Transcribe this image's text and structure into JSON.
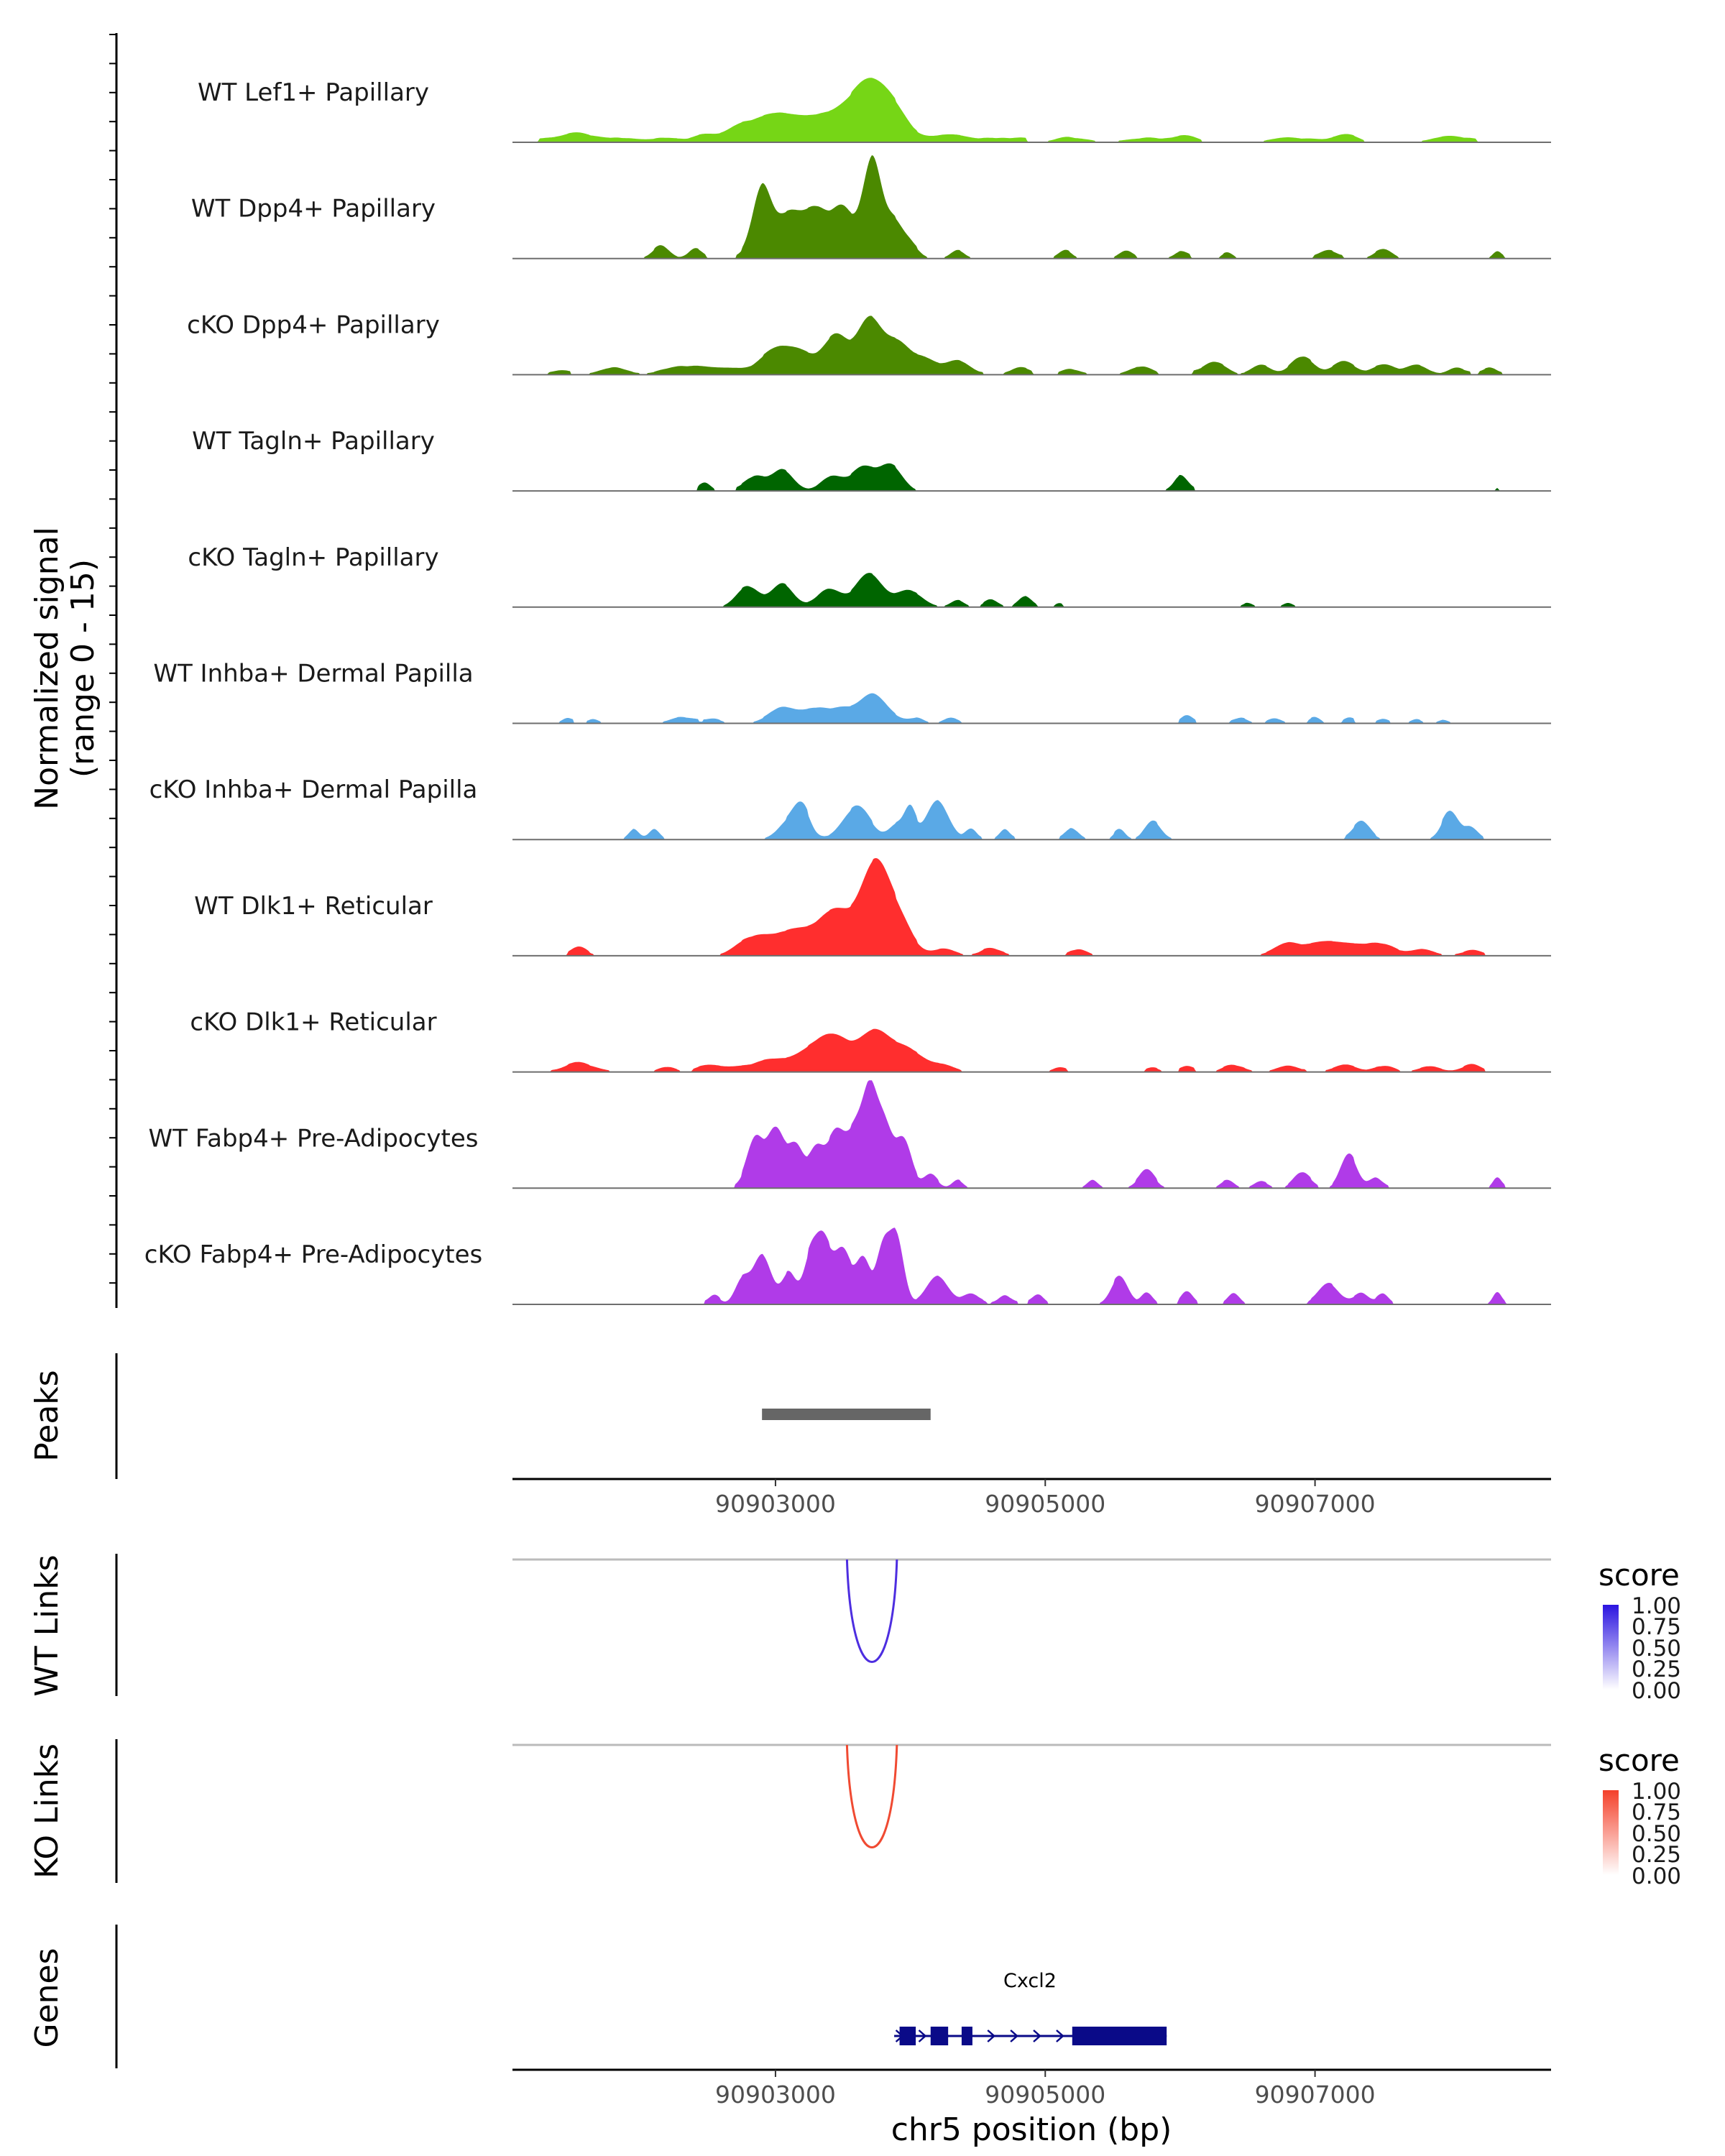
{
  "chart_data": {
    "type": "area",
    "title": "",
    "region": {
      "chrom": "chr5",
      "start": 90901050,
      "end": 90908750
    },
    "xlabel": "chr5 position (bp)",
    "x_ticks": [
      90903000,
      90905000,
      90907000
    ],
    "x_tick_labels": [
      "90903000",
      "90905000",
      "90907000"
    ],
    "ylabel_line1": "Normalized signal",
    "ylabel_line2": "(range 0 - 15)",
    "ylim": [
      0,
      15
    ],
    "tracks": [
      {
        "name": "WT Lef1+ Papillary",
        "color": "#76d616",
        "peaks": [
          [
            90901400,
            0.6,
            110
          ],
          [
            90901600,
            0.9,
            130
          ],
          [
            90901900,
            0.5,
            110
          ],
          [
            90902200,
            0.6,
            110
          ],
          [
            90902500,
            0.8,
            100
          ],
          [
            90902700,
            0.7,
            90
          ],
          [
            90902900,
            2.8,
            160
          ],
          [
            90903100,
            2.2,
            140
          ],
          [
            90903300,
            1.6,
            120
          ],
          [
            90903500,
            2.6,
            160
          ],
          [
            90903700,
            6.0,
            150
          ],
          [
            90903850,
            3.0,
            130
          ],
          [
            90904300,
            1.1,
            140
          ],
          [
            90904700,
            0.6,
            120
          ],
          [
            90905200,
            0.6,
            120
          ],
          [
            90905700,
            0.5,
            120
          ],
          [
            90906000,
            0.7,
            110
          ],
          [
            90906800,
            0.7,
            120
          ],
          [
            90907200,
            0.9,
            100
          ],
          [
            90908000,
            0.9,
            120
          ]
        ]
      },
      {
        "name": "WT Dpp4+ Papillary",
        "color": "#4b8900",
        "peaks": [
          [
            90902150,
            1.8,
            60
          ],
          [
            90902400,
            1.2,
            50
          ],
          [
            90902900,
            10.0,
            70
          ],
          [
            90903100,
            6.0,
            90
          ],
          [
            90903300,
            6.5,
            90
          ],
          [
            90903500,
            6.8,
            80
          ],
          [
            90903720,
            14.0,
            70
          ],
          [
            90903880,
            4.5,
            60
          ],
          [
            90904000,
            2.0,
            60
          ],
          [
            90904350,
            1.2,
            50
          ],
          [
            90905150,
            1.0,
            50
          ],
          [
            90905600,
            1.1,
            50
          ],
          [
            90906000,
            0.8,
            50
          ],
          [
            90906350,
            0.7,
            40
          ],
          [
            90907100,
            1.2,
            60
          ],
          [
            90907500,
            1.3,
            60
          ],
          [
            90908350,
            1.0,
            30
          ]
        ]
      },
      {
        "name": "cKO Dpp4+ Papillary",
        "color": "#4b8900",
        "peaks": [
          [
            90901400,
            0.6,
            60
          ],
          [
            90901800,
            1.0,
            100
          ],
          [
            90902300,
            1.2,
            130
          ],
          [
            90902600,
            0.9,
            100
          ],
          [
            90903000,
            3.5,
            120
          ],
          [
            90903200,
            2.5,
            100
          ],
          [
            90903450,
            5.5,
            90
          ],
          [
            90903700,
            7.5,
            90
          ],
          [
            90903900,
            4.0,
            90
          ],
          [
            90904100,
            2.2,
            90
          ],
          [
            90904350,
            2.0,
            90
          ],
          [
            90904800,
            0.8,
            70
          ],
          [
            90905200,
            0.7,
            70
          ],
          [
            90905700,
            1.1,
            80
          ],
          [
            90906250,
            1.8,
            80
          ],
          [
            90906600,
            1.4,
            70
          ],
          [
            90906900,
            2.5,
            80
          ],
          [
            90907200,
            1.7,
            80
          ],
          [
            90907500,
            1.4,
            80
          ],
          [
            90907750,
            1.4,
            80
          ],
          [
            90908050,
            1.0,
            60
          ],
          [
            90908300,
            1.0,
            50
          ]
        ]
      },
      {
        "name": "WT Tagln+ Papillary",
        "color": "#006500",
        "peaks": [
          [
            90902480,
            0.9,
            40
          ],
          [
            90902850,
            2.0,
            70
          ],
          [
            90903050,
            3.0,
            80
          ],
          [
            90903420,
            2.0,
            80
          ],
          [
            90903650,
            3.0,
            90
          ],
          [
            90903850,
            3.5,
            80
          ],
          [
            90906000,
            2.0,
            50
          ],
          [
            90908350,
            0.4,
            10
          ]
        ]
      },
      {
        "name": "cKO Tagln+ Papillary",
        "color": "#006500",
        "peaks": [
          [
            90902800,
            2.8,
            80
          ],
          [
            90903050,
            3.3,
            80
          ],
          [
            90903400,
            2.5,
            90
          ],
          [
            90903700,
            4.5,
            100
          ],
          [
            90904000,
            2.2,
            90
          ],
          [
            90904350,
            1.0,
            50
          ],
          [
            90904600,
            1.0,
            50
          ],
          [
            90904850,
            1.2,
            50
          ],
          [
            90905100,
            0.4,
            30
          ],
          [
            90906500,
            0.6,
            40
          ],
          [
            90906800,
            0.6,
            40
          ]
        ]
      },
      {
        "name": "WT Inhba+ Dermal Papilla",
        "color": "#5aa9e6",
        "peaks": [
          [
            90901450,
            0.6,
            40
          ],
          [
            90901650,
            0.6,
            40
          ],
          [
            90902300,
            0.9,
            80
          ],
          [
            90902550,
            0.6,
            50
          ],
          [
            90903050,
            2.2,
            100
          ],
          [
            90903300,
            2.0,
            100
          ],
          [
            90903500,
            1.8,
            80
          ],
          [
            90903730,
            4.0,
            100
          ],
          [
            90904050,
            0.8,
            50
          ],
          [
            90904300,
            0.8,
            50
          ],
          [
            90906050,
            0.8,
            40
          ],
          [
            90906450,
            0.8,
            50
          ],
          [
            90906700,
            0.7,
            50
          ],
          [
            90907000,
            0.7,
            40
          ],
          [
            90907250,
            0.5,
            40
          ],
          [
            90907500,
            0.6,
            40
          ],
          [
            90907750,
            0.6,
            40
          ],
          [
            90907950,
            0.5,
            40
          ]
        ]
      },
      {
        "name": "cKO Inhba+ Dermal Papilla",
        "color": "#5aa9e6",
        "peaks": [
          [
            90901950,
            1.5,
            40
          ],
          [
            90902100,
            1.5,
            40
          ],
          [
            90903100,
            2.5,
            80
          ],
          [
            90903200,
            4.0,
            60
          ],
          [
            90903600,
            4.5,
            100
          ],
          [
            90903900,
            2.0,
            60
          ],
          [
            90904000,
            4.0,
            40
          ],
          [
            90904200,
            5.5,
            80
          ],
          [
            90904450,
            1.5,
            40
          ],
          [
            90904700,
            1.5,
            40
          ],
          [
            90905200,
            1.5,
            50
          ],
          [
            90905550,
            1.5,
            40
          ],
          [
            90905800,
            2.5,
            60
          ],
          [
            90907350,
            2.5,
            60
          ],
          [
            90908000,
            4.0,
            60
          ],
          [
            90908150,
            1.5,
            50
          ]
        ]
      },
      {
        "name": "WT Dlk1+ Reticular",
        "color": "#ff2e2e",
        "peaks": [
          [
            90901550,
            1.0,
            60
          ],
          [
            90902850,
            2.5,
            120
          ],
          [
            90903150,
            3.5,
            140
          ],
          [
            90903450,
            6.0,
            120
          ],
          [
            90903750,
            13.0,
            110
          ],
          [
            90903950,
            3.0,
            90
          ],
          [
            90904250,
            1.0,
            80
          ],
          [
            90904600,
            1.0,
            80
          ],
          [
            90905250,
            0.9,
            60
          ],
          [
            90906800,
            1.8,
            100
          ],
          [
            90907100,
            2.0,
            120
          ],
          [
            90907450,
            1.8,
            130
          ],
          [
            90907800,
            0.9,
            80
          ],
          [
            90908150,
            0.6,
            80
          ]
        ]
      },
      {
        "name": "cKO Dlk1+ Reticular",
        "color": "#ff2e2e",
        "peaks": [
          [
            90901550,
            1.1,
            120
          ],
          [
            90902200,
            0.7,
            60
          ],
          [
            90902550,
            0.9,
            100
          ],
          [
            90902950,
            1.7,
            130
          ],
          [
            90903250,
            2.5,
            120
          ],
          [
            90903450,
            4.5,
            120
          ],
          [
            90903750,
            5.5,
            110
          ],
          [
            90904000,
            2.8,
            110
          ],
          [
            90904250,
            0.9,
            80
          ],
          [
            90905100,
            0.5,
            50
          ],
          [
            90905800,
            0.5,
            50
          ],
          [
            90906050,
            0.5,
            50
          ],
          [
            90906400,
            0.9,
            80
          ],
          [
            90906800,
            0.9,
            80
          ],
          [
            90907200,
            0.8,
            80
          ],
          [
            90907500,
            0.8,
            80
          ],
          [
            90907850,
            0.8,
            80
          ],
          [
            90908150,
            0.9,
            70
          ]
        ]
      },
      {
        "name": "WT Fabp4+ Pre-Adipocytes",
        "color": "#b03be8",
        "peaks": [
          [
            90902850,
            7.0,
            60
          ],
          [
            90903000,
            8.0,
            60
          ],
          [
            90903150,
            6.0,
            60
          ],
          [
            90903300,
            5.0,
            50
          ],
          [
            90903450,
            8.0,
            70
          ],
          [
            90903600,
            7.5,
            60
          ],
          [
            90903700,
            11.0,
            50
          ],
          [
            90903800,
            9.0,
            60
          ],
          [
            90903950,
            6.5,
            60
          ],
          [
            90904150,
            2.0,
            50
          ],
          [
            90904350,
            1.2,
            40
          ],
          [
            90905350,
            1.2,
            40
          ],
          [
            90905750,
            2.5,
            60
          ],
          [
            90906350,
            1.0,
            50
          ],
          [
            90906600,
            1.0,
            50
          ],
          [
            90906900,
            2.2,
            60
          ],
          [
            90907250,
            4.5,
            60
          ],
          [
            90907450,
            1.5,
            50
          ],
          [
            90908350,
            1.5,
            30
          ]
        ]
      },
      {
        "name": "cKO Fabp4+ Pre-Adipocytes",
        "color": "#b03be8",
        "peaks": [
          [
            90902550,
            1.3,
            40
          ],
          [
            90902750,
            3.0,
            50
          ],
          [
            90902900,
            7.0,
            70
          ],
          [
            90903100,
            4.5,
            50
          ],
          [
            90903250,
            5.5,
            50
          ],
          [
            90903350,
            9.0,
            60
          ],
          [
            90903500,
            7.5,
            60
          ],
          [
            90903650,
            6.0,
            50
          ],
          [
            90903800,
            8.0,
            50
          ],
          [
            90903900,
            9.0,
            50
          ],
          [
            90904200,
            4.0,
            80
          ],
          [
            90904450,
            1.5,
            60
          ],
          [
            90904700,
            1.3,
            50
          ],
          [
            90904950,
            1.3,
            40
          ],
          [
            90905550,
            4.0,
            60
          ],
          [
            90905750,
            1.5,
            40
          ],
          [
            90906050,
            1.5,
            40
          ],
          [
            90906400,
            1.5,
            40
          ],
          [
            90907100,
            3.0,
            70
          ],
          [
            90907350,
            1.5,
            50
          ],
          [
            90907500,
            1.5,
            40
          ],
          [
            90908350,
            1.7,
            30
          ]
        ]
      }
    ],
    "peaks_track": {
      "label": "Peaks",
      "regions": [
        [
          90902900,
          90904150
        ]
      ],
      "color": "#666666"
    },
    "links": [
      {
        "label": "WT Links",
        "from": 90903530,
        "to": 90903900,
        "score": 1.0,
        "color": "#4d2ee0"
      },
      {
        "label": "KO Links",
        "from": 90903530,
        "to": 90903900,
        "score": 1.0,
        "color": "#f04a32"
      }
    ],
    "legends": [
      {
        "title": "score",
        "ticks": [
          "1.00",
          "0.75",
          "0.50",
          "0.25",
          "0.00"
        ],
        "color": "#2b14e0"
      },
      {
        "title": "score",
        "ticks": [
          "1.00",
          "0.75",
          "0.50",
          "0.25",
          "0.00"
        ],
        "color": "#f4402a"
      }
    ],
    "genes_track": {
      "label": "Genes",
      "gene": {
        "name": "Cxcl2",
        "start": 90903880,
        "end": 90905900,
        "strand": "+",
        "color": "#0a0a88",
        "exons": [
          [
            90903920,
            90904040
          ],
          [
            90904150,
            90904280
          ],
          [
            90904380,
            90904460
          ],
          [
            90905200,
            90905900
          ]
        ]
      }
    }
  }
}
